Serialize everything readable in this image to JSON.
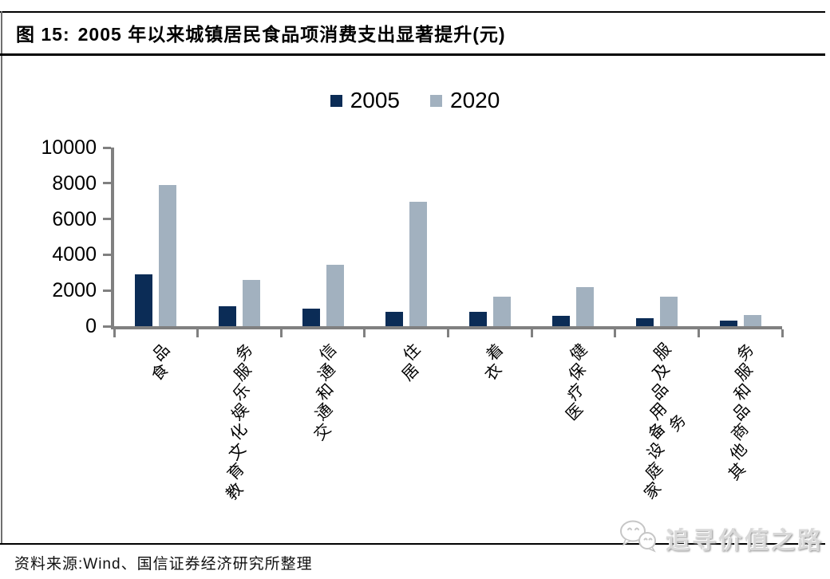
{
  "figure": {
    "label": "图 15:",
    "title": "2005 年以来城镇居民食品项消费支出显著提升(元)"
  },
  "chart_data": {
    "type": "bar",
    "title": "2005 年以来城镇居民食品项消费支出显著提升(元)",
    "unit": "元",
    "categories": [
      "食品",
      "教育文化娱乐服务",
      "交通和通信",
      "居住",
      "衣着",
      "医疗保健",
      "家庭设备用品及服\n务",
      "其他商品和服务"
    ],
    "series": [
      {
        "name": "2005",
        "color": "#0b2c56",
        "values": [
          2910,
          1100,
          1000,
          810,
          800,
          600,
          450,
          310
        ]
      },
      {
        "name": "2020",
        "color": "#a2b1bf",
        "values": [
          7880,
          2590,
          3450,
          6960,
          1650,
          2170,
          1640,
          630
        ]
      }
    ],
    "ylim": [
      0,
      10000
    ],
    "yticks": [
      0,
      2000,
      4000,
      6000,
      8000,
      10000
    ],
    "xlabel": "",
    "ylabel": "",
    "grid": false,
    "legend_position": "top-center"
  },
  "footer": {
    "source": "资料来源:Wind、国信证券经济研究所整理"
  },
  "watermark": {
    "text": "追寻价值之路",
    "logo": "wechat-bubbles-icon"
  },
  "colors": {
    "axis": "#808080",
    "rule": "#000000",
    "watermark_text": "#d9d9d9"
  }
}
